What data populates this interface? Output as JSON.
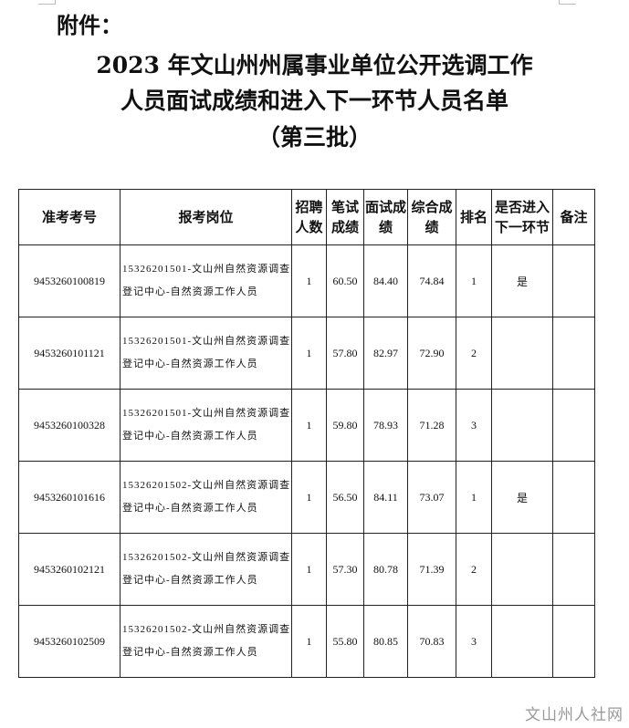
{
  "attachment_label": "附件：",
  "title_lines": [
    "2023 年文山州州属事业单位公开选调工作",
    "人员面试成绩和进入下一环节人员名单",
    "（第三批）"
  ],
  "table": {
    "headers": [
      "准考考号",
      "报考岗位",
      "招聘人数",
      "笔试成绩",
      "面试成绩",
      "综合成绩",
      "排名",
      "是否进入下一环节",
      "备注"
    ],
    "rows": [
      [
        "9453260100819",
        "15326201501-文山州自然资源调查登记中心-自然资源工作人员",
        "1",
        "60.50",
        "84.40",
        "74.84",
        "1",
        "是",
        ""
      ],
      [
        "9453260101121",
        "15326201501-文山州自然资源调查登记中心-自然资源工作人员",
        "1",
        "57.80",
        "82.97",
        "72.90",
        "2",
        "",
        ""
      ],
      [
        "9453260100328",
        "15326201501-文山州自然资源调查登记中心-自然资源工作人员",
        "1",
        "59.80",
        "78.93",
        "71.28",
        "3",
        "",
        ""
      ],
      [
        "9453260101616",
        "15326201502-文山州自然资源调查登记中心-自然资源工作人员",
        "1",
        "56.50",
        "84.11",
        "73.07",
        "1",
        "是",
        ""
      ],
      [
        "9453260102121",
        "15326201502-文山州自然资源调查登记中心-自然资源工作人员",
        "1",
        "57.30",
        "80.78",
        "71.39",
        "2",
        "",
        ""
      ],
      [
        "9453260102509",
        "15326201502-文山州自然资源调查登记中心-自然资源工作人员",
        "1",
        "55.80",
        "80.85",
        "70.83",
        "3",
        "",
        ""
      ]
    ]
  },
  "watermark": "文山州人社网"
}
